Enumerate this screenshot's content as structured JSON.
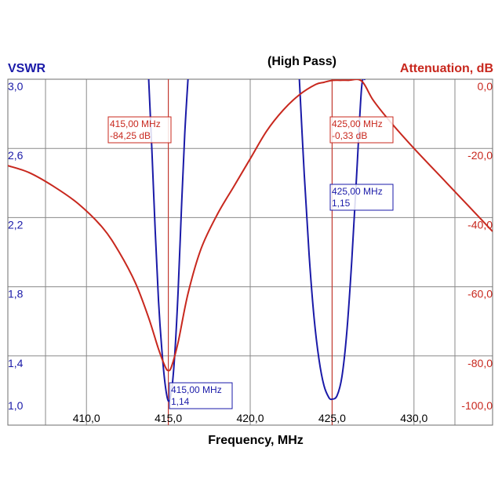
{
  "chart_data": {
    "type": "line",
    "title": "(High Pass)",
    "xlabel": "Frequency, MHz",
    "ylabel_left": "VSWR",
    "ylabel_right": "Attenuation, dB",
    "xlim": [
      405.2,
      434.8
    ],
    "ylim_left": [
      1.0,
      3.0
    ],
    "ylim_right": [
      -100.0,
      0.0
    ],
    "x_ticks": [
      "410,0",
      "415,0",
      "420,0",
      "425,0",
      "430,0"
    ],
    "x_tick_values": [
      410,
      415,
      420,
      425,
      430
    ],
    "y_left_ticks": [
      "1,0",
      "1,4",
      "1,8",
      "2,2",
      "2,6",
      "3,0"
    ],
    "y_left_tick_values": [
      1.0,
      1.4,
      1.8,
      2.2,
      2.6,
      3.0
    ],
    "y_right_ticks": [
      "-100,0",
      "-80,0",
      "-60,0",
      "-40,0",
      "-20,0",
      "0,0"
    ],
    "y_right_tick_values": [
      -100,
      -80,
      -60,
      -40,
      -20,
      0
    ],
    "grid": true,
    "colors": {
      "vswr": "#1a1aa8",
      "attenuation": "#c8281e",
      "grid": "#8a8a8a"
    },
    "series": [
      {
        "name": "VSWR",
        "axis": "left",
        "segments": [
          {
            "x": [
              413.8,
              414.0,
              414.2,
              414.4,
              414.6,
              414.8,
              415.0,
              415.2,
              415.4,
              415.6,
              415.8,
              416.0,
              416.2
            ],
            "y": [
              3.0,
              2.58,
              2.12,
              1.72,
              1.44,
              1.24,
              1.14,
              1.2,
              1.42,
              1.78,
              2.25,
              2.68,
              3.0
            ]
          },
          {
            "x": [
              423.0,
              423.3,
              423.6,
              423.9,
              424.2,
              424.5,
              424.8,
              425.0,
              425.3,
              425.6,
              425.9,
              426.2,
              426.5,
              426.8,
              427.0
            ],
            "y": [
              3.0,
              2.45,
              1.98,
              1.62,
              1.38,
              1.23,
              1.16,
              1.15,
              1.17,
              1.28,
              1.54,
              1.95,
              2.45,
              2.95,
              3.0
            ]
          }
        ]
      },
      {
        "name": "Attenuation",
        "axis": "right",
        "x": [
          405.2,
          406.5,
          408.0,
          409.5,
          411.0,
          412.0,
          413.0,
          413.8,
          414.4,
          414.8,
          415.0,
          415.2,
          415.6,
          416.2,
          417.0,
          418.0,
          419.0,
          420.0,
          421.0,
          422.0,
          423.0,
          424.0,
          424.5,
          425.0,
          425.5,
          426.0,
          426.8,
          427.5,
          428.5,
          430.0,
          432.0,
          434.8
        ],
        "y": [
          -25.0,
          -27.0,
          -31.0,
          -36.0,
          -43.0,
          -50.0,
          -59.0,
          -69.0,
          -78.0,
          -83.0,
          -84.25,
          -83.0,
          -76.0,
          -62.0,
          -49.0,
          -39.0,
          -31.0,
          -23.0,
          -15.0,
          -9.0,
          -4.5,
          -1.5,
          -0.9,
          -0.33,
          -0.3,
          -0.3,
          -0.5,
          -6.0,
          -12.0,
          -20.0,
          -30.0,
          -44.0
        ]
      }
    ],
    "markers": [
      {
        "x": 415.0,
        "color": "attenuation",
        "freq_label": "415,00 MHz",
        "value_label": "-84,25 dB"
      },
      {
        "x": 425.0,
        "color": "attenuation",
        "freq_label": "425,00 MHz",
        "value_label": "-0,33 dB"
      },
      {
        "x": 425.0,
        "color": "vswr",
        "freq_label": "425,00 MHz",
        "value_label": "1,15"
      },
      {
        "x": 415.0,
        "color": "vswr",
        "freq_label": "415,00 MHz",
        "value_label": "1,14"
      }
    ]
  }
}
